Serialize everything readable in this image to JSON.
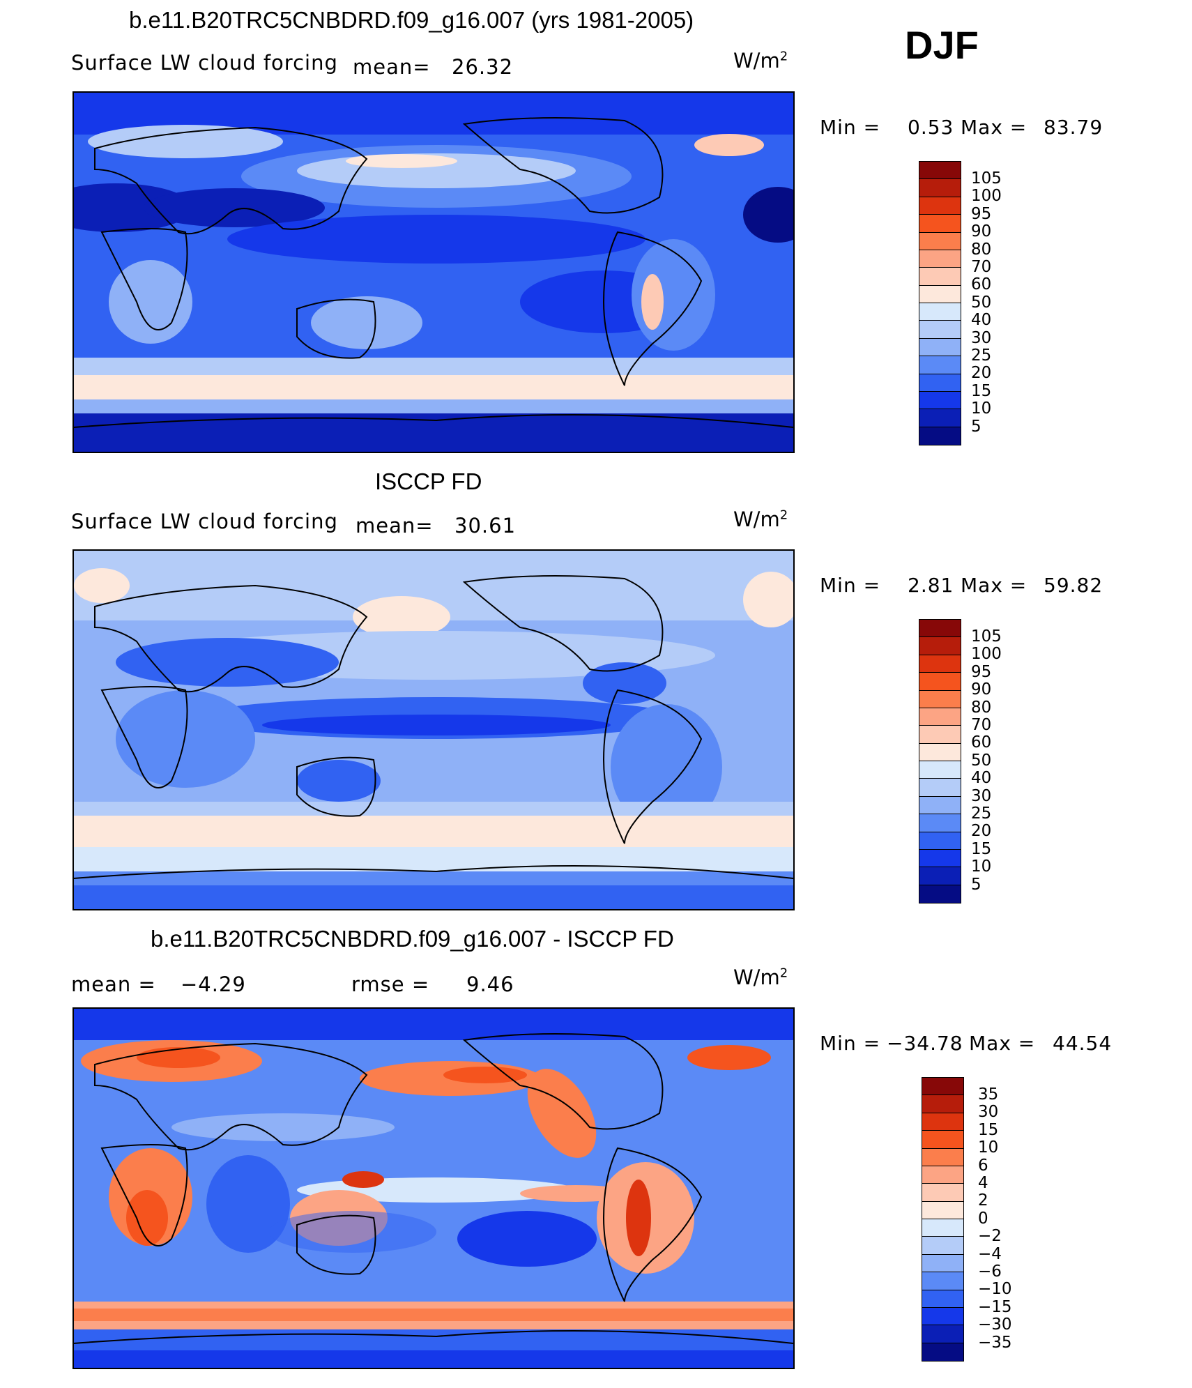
{
  "season": "DJF",
  "units": "W/m",
  "units_exp": "2",
  "panels": [
    {
      "title": "b.e11.B20TRC5CNBDRD.f09_g16.007 (yrs 1981-2005)",
      "subtitle": "Surface LW cloud forcing",
      "mean_label": "mean=",
      "mean_value": "26.32",
      "min_label": "Min =",
      "min_value": "0.53",
      "max_label": "Max =",
      "max_value": "83.79",
      "colorbar": [
        "105",
        "100",
        "95",
        "90",
        "80",
        "70",
        "60",
        "50",
        "40",
        "30",
        "25",
        "20",
        "15",
        "10",
        "5"
      ]
    },
    {
      "title": "ISCCP FD",
      "subtitle": "Surface LW cloud forcing",
      "mean_label": "mean=",
      "mean_value": "30.61",
      "min_label": "Min =",
      "min_value": "2.81",
      "max_label": "Max =",
      "max_value": "59.82",
      "colorbar": [
        "105",
        "100",
        "95",
        "90",
        "80",
        "70",
        "60",
        "50",
        "40",
        "30",
        "25",
        "20",
        "15",
        "10",
        "5"
      ]
    },
    {
      "title": "b.e11.B20TRC5CNBDRD.f09_g16.007 - ISCCP FD",
      "mean_label": "mean =",
      "mean_value": "−4.29",
      "rmse_label": "rmse =",
      "rmse_value": "9.46",
      "min_label": "Min =",
      "min_value": "−34.78",
      "max_label": "Max =",
      "max_value": "44.54",
      "colorbar": [
        "35",
        "30",
        "15",
        "10",
        "6",
        "4",
        "2",
        "0",
        "−2",
        "−4",
        "−6",
        "−10",
        "−15",
        "−30",
        "−35"
      ]
    }
  ],
  "colors": {
    "scale": [
      "#870808",
      "#b61d0b",
      "#dd340f",
      "#f5541e",
      "#fb7e4c",
      "#fca484",
      "#fdcab5",
      "#fde8dc",
      "#d7e8fb",
      "#b4ccf8",
      "#8fb1f7",
      "#5b8af6",
      "#3162f2",
      "#1538ea",
      "#0b1fb6",
      "#050c84"
    ]
  }
}
